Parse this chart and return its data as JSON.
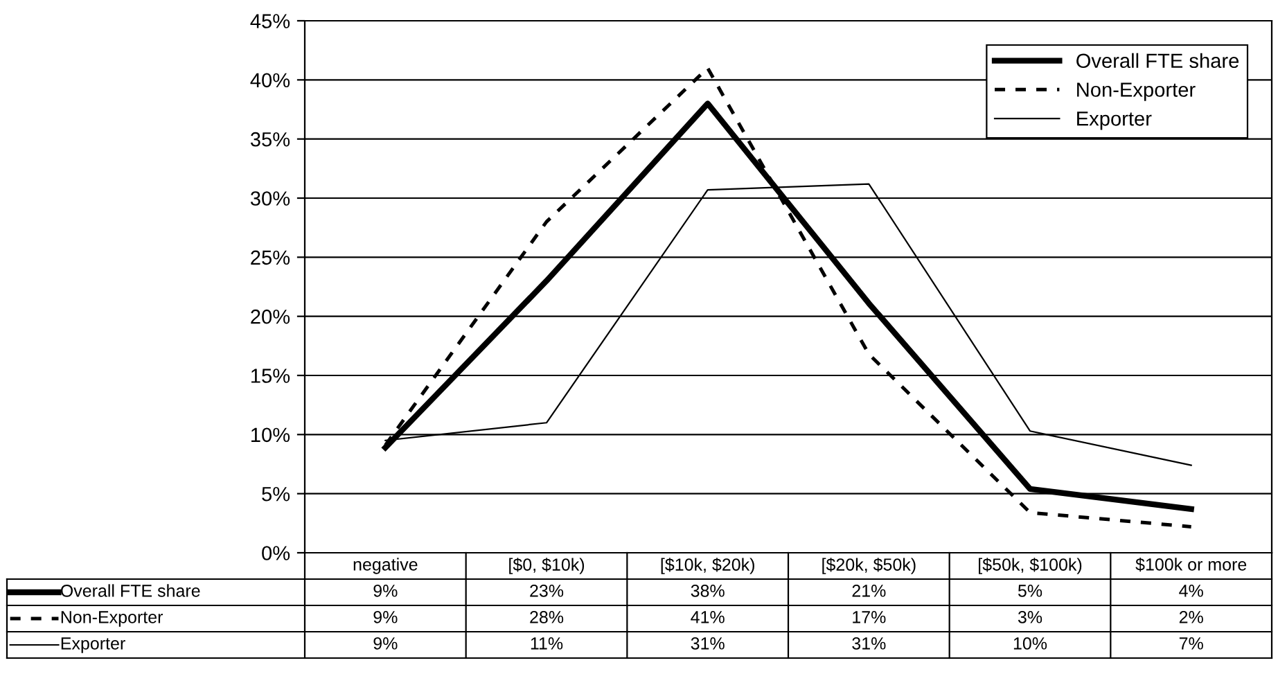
{
  "chart_data": {
    "type": "line",
    "categories": [
      "negative",
      "[$0, $10k)",
      "[$10k, $20k)",
      "[$20k, $50k)",
      "[$50k, $100k)",
      "$100k or more"
    ],
    "series": [
      {
        "name": "Overall FTE share",
        "color": "#000000",
        "line_style": "solid",
        "values": [
          8.9,
          23.0,
          38.0,
          21.1,
          5.4,
          3.7
        ],
        "value_labels": [
          "9%",
          "23%",
          "38%",
          "21%",
          "5%",
          "4%"
        ]
      },
      {
        "name": "Non-Exporter",
        "color": "#000000",
        "line_style": "dashed",
        "values": [
          9.1,
          28.0,
          41.0,
          16.8,
          3.4,
          2.2
        ],
        "value_labels": [
          "9%",
          "28%",
          "41%",
          "17%",
          "3%",
          "2%"
        ]
      },
      {
        "name": "Exporter",
        "color": "#000000",
        "line_style": "solid",
        "values": [
          9.5,
          11.0,
          30.7,
          31.2,
          10.3,
          7.4
        ],
        "value_labels": [
          "9%",
          "11%",
          "31%",
          "31%",
          "10%",
          "7%"
        ]
      }
    ],
    "ylim": [
      0,
      45
    ],
    "yticks": [
      {
        "value": 0,
        "label": "0%"
      },
      {
        "value": 5,
        "label": "5%"
      },
      {
        "value": 10,
        "label": "10%"
      },
      {
        "value": 15,
        "label": "15%"
      },
      {
        "value": 20,
        "label": "20%"
      },
      {
        "value": 25,
        "label": "25%"
      },
      {
        "value": 30,
        "label": "30%"
      },
      {
        "value": 35,
        "label": "35%"
      },
      {
        "value": 40,
        "label": "40%"
      },
      {
        "value": 45,
        "label": "45%"
      }
    ],
    "grid": "y",
    "legend": "top right",
    "marker": "none"
  }
}
